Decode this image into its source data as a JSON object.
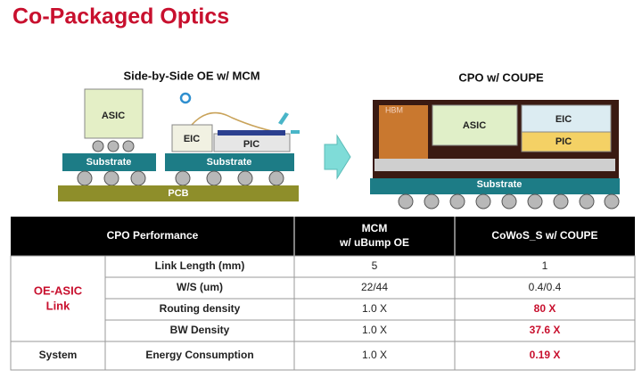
{
  "header": {
    "title": "Co-Packaged Optics"
  },
  "diagrams": {
    "left": {
      "caption": "Side-by-Side OE w/ MCM",
      "asic": "ASIC",
      "eic": "EIC",
      "pic": "PIC",
      "substrate": "Substrate",
      "pcb": "PCB"
    },
    "right": {
      "caption": "CPO w/ COUPE",
      "hbm": "HBM",
      "asic": "ASIC",
      "eic": "EIC",
      "pic": "PIC",
      "substrate": "Substrate"
    }
  },
  "table": {
    "columns": [
      {
        "lines": [
          "CPO Performance"
        ]
      },
      {
        "lines": [
          "MCM",
          "w/ uBump OE"
        ]
      },
      {
        "lines": [
          "CoWoS_S w/ COUPE"
        ]
      }
    ],
    "groups": [
      {
        "lines": [
          "OE-ASIC",
          "Link"
        ]
      },
      {
        "lines": [
          "System"
        ]
      }
    ],
    "rows": [
      [
        "Link Length (mm)",
        "5",
        "1"
      ],
      [
        "W/S (um)",
        "22/44",
        "0.4/0.4"
      ],
      [
        "Routing density",
        "1.0 X",
        "80 X"
      ],
      [
        "BW Density",
        "1.0 X",
        "37.6 X"
      ],
      [
        "Energy Consumption",
        "1.0 X",
        "0.19 X"
      ]
    ]
  }
}
